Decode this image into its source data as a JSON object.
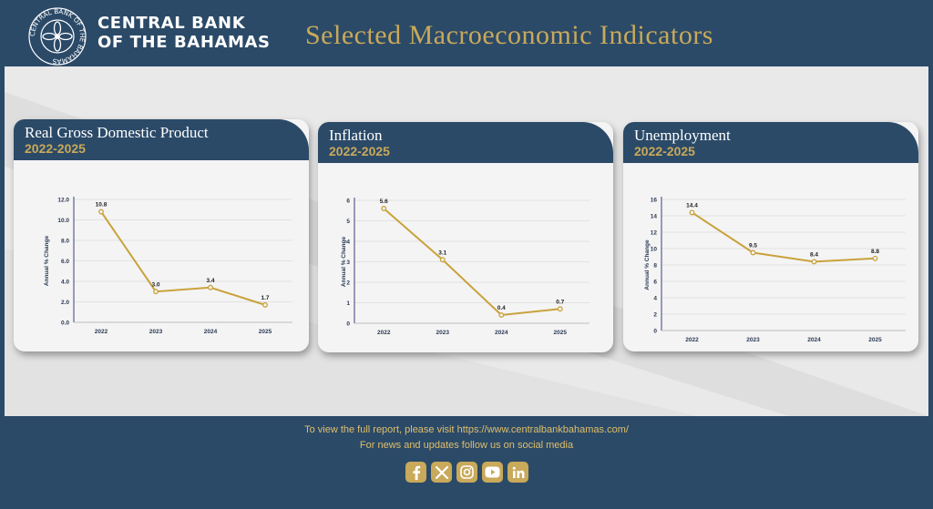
{
  "header": {
    "bank_name_line1": "CENTRAL BANK",
    "bank_name_line2": "OF THE BAHAMAS",
    "seal_text": "CENTRAL BANK OF THE BAHAMAS",
    "title": "Selected Macroeconomic Indicators"
  },
  "colors": {
    "navy": "#2b4a68",
    "gold": "#c9a95a",
    "line": "#c9a23c",
    "panel": "#e9e9e9"
  },
  "chart_data": [
    {
      "type": "line",
      "title": "Real Gross Domestic Product",
      "subtitle": "2022-2025",
      "ylabel": "Annual % Change",
      "xlabel": "",
      "categories": [
        "2022",
        "2023",
        "2024",
        "2025"
      ],
      "values": [
        10.8,
        3.0,
        3.4,
        1.7
      ],
      "value_labels": [
        "10.8",
        "3.0",
        "3.4",
        "1.7"
      ],
      "yticks": [
        "0.0",
        "2.0",
        "4.0",
        "6.0",
        "8.0",
        "10.0",
        "12.0"
      ],
      "ylim": [
        0,
        12
      ],
      "grid": true
    },
    {
      "type": "line",
      "title": "Inflation",
      "subtitle": "2022-2025",
      "ylabel": "Annual % Change",
      "xlabel": "",
      "categories": [
        "2022",
        "2023",
        "2024",
        "2025"
      ],
      "values": [
        5.6,
        3.1,
        0.4,
        0.7
      ],
      "value_labels": [
        "5.6",
        "3.1",
        "0.4",
        "0.7"
      ],
      "yticks": [
        "0",
        "1",
        "2",
        "3",
        "4",
        "5",
        "6"
      ],
      "ylim": [
        0,
        6
      ],
      "grid": true
    },
    {
      "type": "line",
      "title": "Unemployment",
      "subtitle": "2022-2025",
      "ylabel": "Annual % Change",
      "xlabel": "",
      "categories": [
        "2022",
        "2023",
        "2024",
        "2025"
      ],
      "values": [
        14.4,
        9.5,
        8.4,
        8.8
      ],
      "value_labels": [
        "14.4",
        "9.5",
        "8.4",
        "8.8"
      ],
      "yticks": [
        "0",
        "2",
        "4",
        "6",
        "8",
        "10",
        "12",
        "14",
        "16"
      ],
      "ylim": [
        0,
        16
      ],
      "grid": true
    }
  ],
  "footer": {
    "report_text": "To view the full report, please visit https://www.centralbankbahamas.com/",
    "social_text": "For news and updates follow us on social media",
    "socials": [
      "facebook-icon",
      "x-icon",
      "instagram-icon",
      "youtube-icon",
      "linkedin-icon"
    ]
  }
}
